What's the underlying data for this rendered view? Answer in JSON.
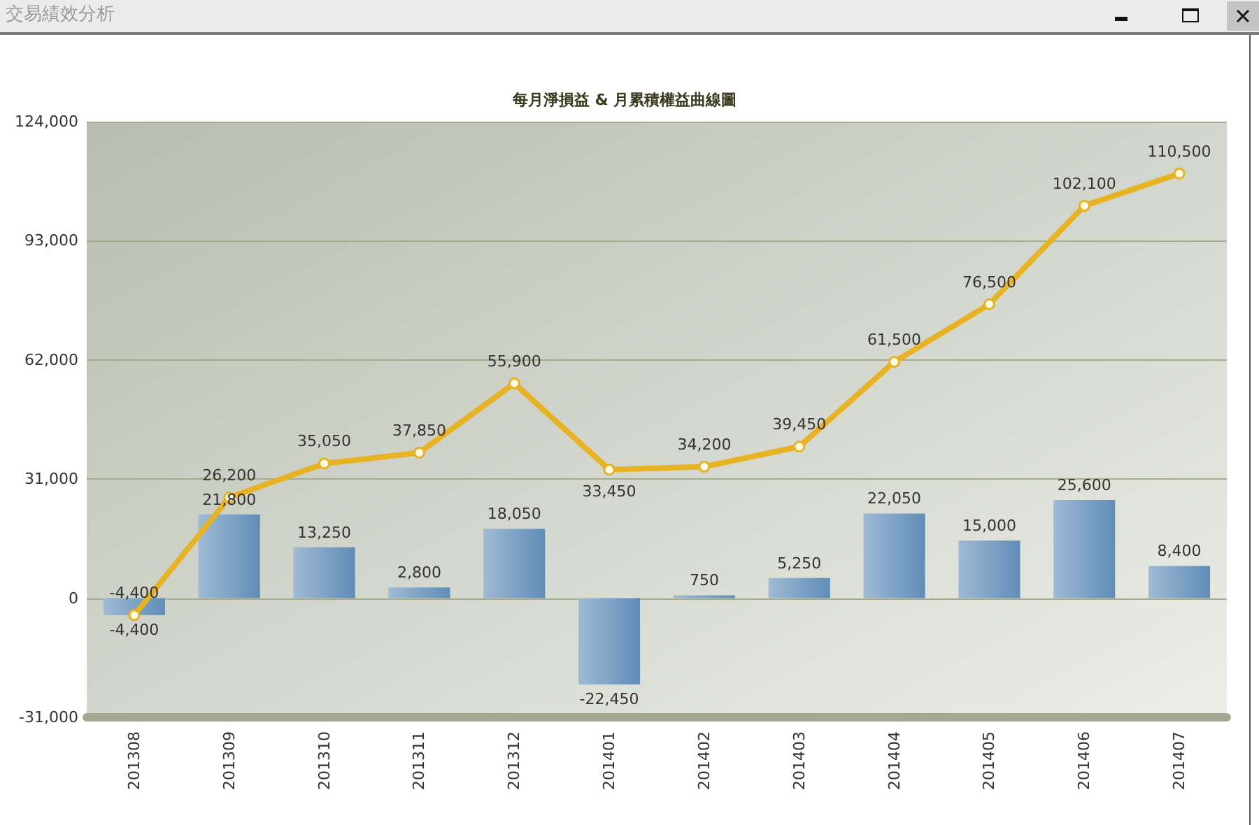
{
  "chart_data": {
    "type": "bar",
    "title": "交易績效分析",
    "subtitle": "每月淨損益 & 月累積權益曲線圖",
    "categories": [
      "201308",
      "201309",
      "201310",
      "201311",
      "201312",
      "201401",
      "201402",
      "201403",
      "201404",
      "201405",
      "201406",
      "201407"
    ],
    "series": [
      {
        "color": "#9fbad4",
        "values": [
          -4400,
          21800,
          13250,
          2800,
          18050,
          -22450,
          750,
          5250,
          22050,
          15000,
          25600,
          8400
        ],
        "value_labels": [
          "-4,400",
          "21,800",
          "13,250",
          "2,800",
          "18,050",
          "-22,450",
          "750",
          "5,250",
          "22,050",
          "15,000",
          "25,600",
          "8,400"
        ]
      },
      {
        "type": "line",
        "color": "#e8b323",
        "marker": "circle",
        "line_style": "solid",
        "values": [
          -4400,
          26200,
          35050,
          37850,
          55900,
          33450,
          34200,
          39450,
          61500,
          76500,
          102100,
          110500
        ],
        "value_labels": [
          "-4,400",
          "26,200",
          "35,050",
          "37,850",
          "55,900",
          "33,450",
          "34,200",
          "39,450",
          "61,500",
          "76,500",
          "102,100",
          "110,500"
        ]
      }
    ],
    "ylim": [
      -31000,
      124000
    ],
    "yticks": [
      {
        "value": -31000,
        "label": "-31,000"
      },
      0,
      {
        "value": 31000,
        "label": "31,000"
      },
      {
        "value": 62000,
        "label": "62,000"
      },
      {
        "value": 93000,
        "label": "93,000"
      },
      {
        "value": 124000,
        "label": "124,000"
      }
    ],
    "grid": "y"
  }
}
